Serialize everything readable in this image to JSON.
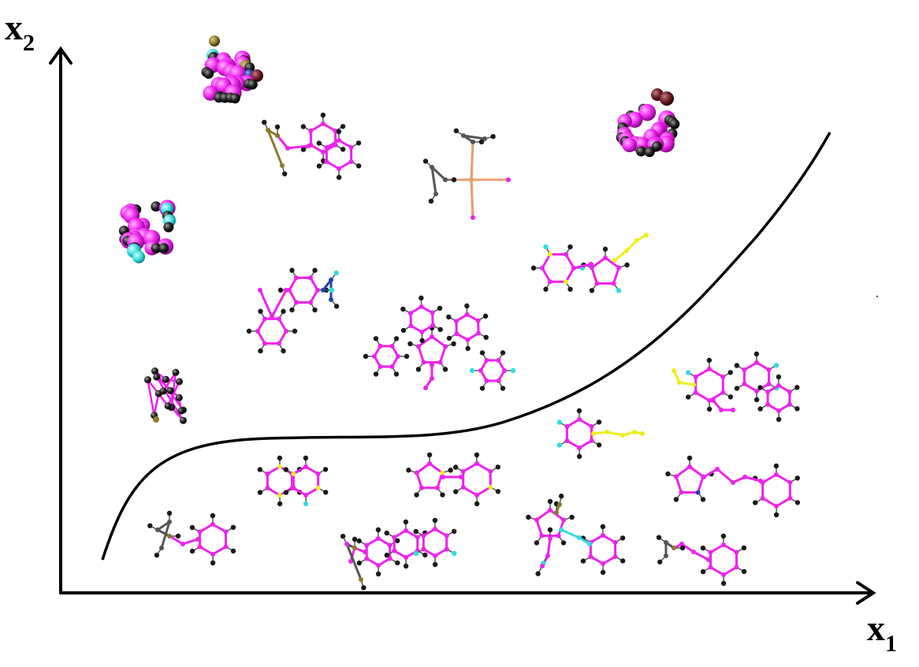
{
  "axes": {
    "x": {
      "letter": "x",
      "subscript": "1"
    },
    "y": {
      "letter": "x",
      "subscript": "2"
    }
  },
  "colors": {
    "carbon": "#ee22ee",
    "hydrogen": "#1a1a1a",
    "fluorine": "#33dddd",
    "sulfur": "#eeee22",
    "phosphorus": "#8a7a2a",
    "nitrogen": "#2244aa",
    "oxygen": "#7a1f2a",
    "metal": "#e8a070",
    "axis": "#000000",
    "boundary": "#000000"
  },
  "regions": {
    "above_boundary": {
      "molecule_count": 10
    },
    "below_boundary": {
      "molecule_count": 11
    }
  }
}
